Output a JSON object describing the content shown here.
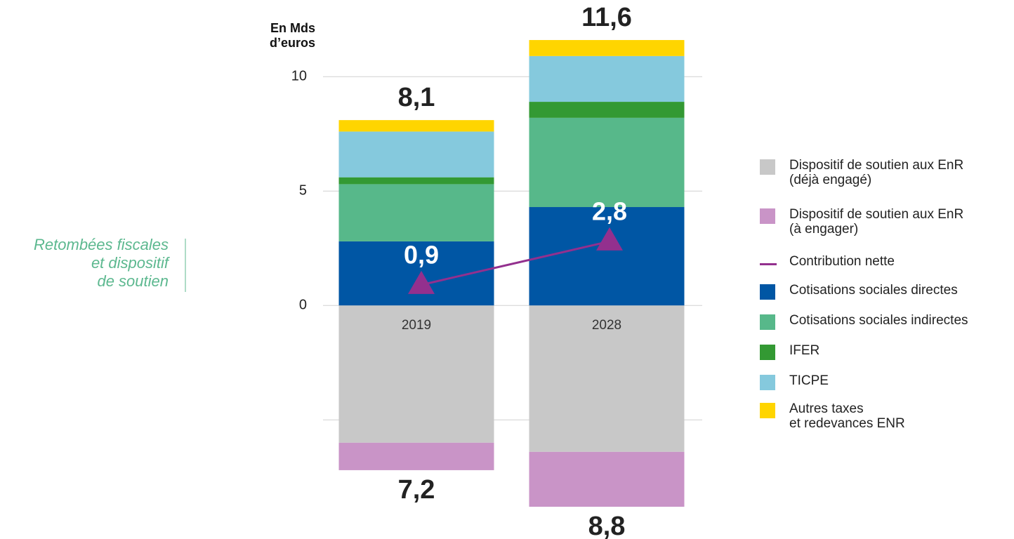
{
  "chart_data": {
    "type": "bar",
    "stacked": true,
    "y_label": "En Mds\nd’euros",
    "annotation": "Retombées fiscales\net dispositif\nde soutien",
    "categories": [
      "2019",
      "2028"
    ],
    "ylim": [
      -9,
      12
    ],
    "yticks": [
      0,
      5,
      10
    ],
    "ygrid": [
      -5,
      0,
      5,
      10
    ],
    "grid": true,
    "legend_position": "right",
    "series": [
      {
        "name": "Dispositif de soutien aux EnR\n(déjà engagé)",
        "color": "#c8c8c8",
        "values": [
          -6.0,
          -6.4
        ]
      },
      {
        "name": "Dispositif de soutien aux EnR\n(à engager)",
        "color": "#c994c7",
        "values": [
          -1.2,
          -2.4
        ]
      },
      {
        "name": "Contribution nette",
        "color": "#93308e",
        "type": "line",
        "values": [
          0.9,
          2.8
        ],
        "value_labels": [
          "0,9",
          "2,8"
        ]
      },
      {
        "name": "Cotisations sociales directes",
        "color": "#0056a4",
        "values": [
          2.8,
          4.3
        ]
      },
      {
        "name": "Cotisations sociales indirectes",
        "color": "#57b88a",
        "values": [
          2.5,
          3.9
        ]
      },
      {
        "name": "IFER",
        "color": "#339933",
        "values": [
          0.3,
          0.7
        ]
      },
      {
        "name": "TICPE",
        "color": "#85c9dd",
        "values": [
          2.0,
          2.0
        ]
      },
      {
        "name": "Autres taxes\net redevances ENR",
        "color": "#ffd500",
        "values": [
          0.5,
          0.7
        ]
      }
    ],
    "top_totals": {
      "values": [
        8.1,
        11.6
      ],
      "value_labels": [
        "8,1",
        "11,6"
      ]
    },
    "bottom_totals": {
      "values": [
        7.2,
        8.8
      ],
      "value_labels": [
        "7,2",
        "8,8"
      ]
    }
  }
}
